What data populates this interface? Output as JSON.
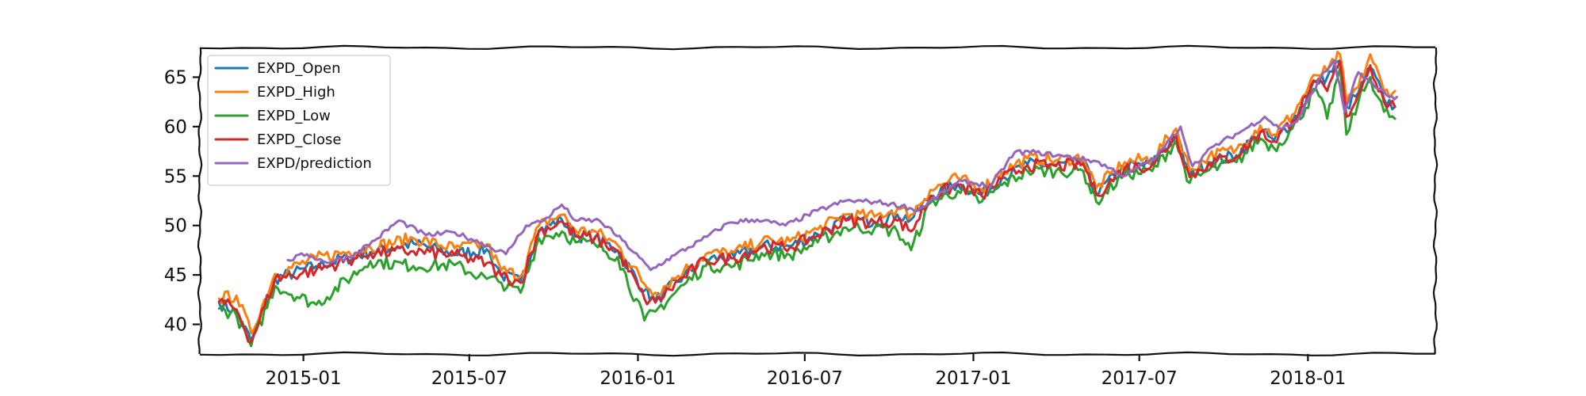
{
  "chart_data": {
    "type": "line",
    "title": "",
    "xlabel": "",
    "ylabel": "",
    "xlim": [
      "2014-09-10",
      "2018-05-20"
    ],
    "ylim": [
      37,
      68
    ],
    "x_ticks": [
      {
        "date": "2015-01-01",
        "label": "2015-01"
      },
      {
        "date": "2015-07-01",
        "label": "2015-07"
      },
      {
        "date": "2016-01-01",
        "label": "2016-01"
      },
      {
        "date": "2016-07-01",
        "label": "2016-07"
      },
      {
        "date": "2017-01-01",
        "label": "2017-01"
      },
      {
        "date": "2017-07-01",
        "label": "2017-07"
      },
      {
        "date": "2018-01-01",
        "label": "2018-01"
      }
    ],
    "y_ticks": [
      40,
      45,
      50,
      55,
      60,
      65
    ],
    "grid": false,
    "legend_position": "upper-left",
    "style": "xkcd",
    "series": [
      {
        "name": "EXPD_Open",
        "color": "#1f77b4",
        "draw_order": 1,
        "dates": [
          "2014-10-01",
          "2014-10-20",
          "2014-11-05",
          "2014-12-01",
          "2015-01-15",
          "2015-03-15",
          "2015-05-01",
          "2015-06-15",
          "2015-07-20",
          "2015-08-05",
          "2015-08-26",
          "2015-09-15",
          "2015-10-10",
          "2015-10-25",
          "2015-11-15",
          "2015-12-10",
          "2016-01-08",
          "2016-01-20",
          "2016-02-20",
          "2016-03-15",
          "2016-04-15",
          "2016-05-15",
          "2016-06-15",
          "2016-07-15",
          "2016-08-15",
          "2016-09-15",
          "2016-10-10",
          "2016-10-25",
          "2016-11-15",
          "2016-12-15",
          "2017-01-10",
          "2017-02-01",
          "2017-03-01",
          "2017-04-01",
          "2017-05-01",
          "2017-05-15",
          "2017-06-15",
          "2017-07-15",
          "2017-08-10",
          "2017-08-25",
          "2017-09-15",
          "2017-10-15",
          "2017-11-10",
          "2017-11-25",
          "2017-12-15",
          "2018-01-10",
          "2018-01-22",
          "2018-02-05",
          "2018-02-12",
          "2018-02-25",
          "2018-03-10",
          "2018-03-25",
          "2018-04-06"
        ],
        "values": [
          42.2,
          41.2,
          38.3,
          44.6,
          45.9,
          47.3,
          48.2,
          47.1,
          47.6,
          45.0,
          44.3,
          49.5,
          50.6,
          49.0,
          48.8,
          47.5,
          43.4,
          42.4,
          44.9,
          46.6,
          46.8,
          47.9,
          47.9,
          49.1,
          50.6,
          50.4,
          51.1,
          50.6,
          53.0,
          54.2,
          53.1,
          54.8,
          56.2,
          56.1,
          56.4,
          53.2,
          55.9,
          56.2,
          59.2,
          55.0,
          56.4,
          57.1,
          59.5,
          58.6,
          60.5,
          64.6,
          65.0,
          66.7,
          62.0,
          63.4,
          66.0,
          62.8,
          62.0
        ]
      },
      {
        "name": "EXPD_High",
        "color": "#ff7f0e",
        "draw_order": 2,
        "dates": [
          "2014-10-01",
          "2014-10-20",
          "2014-11-05",
          "2014-12-01",
          "2015-01-15",
          "2015-03-15",
          "2015-05-01",
          "2015-06-15",
          "2015-07-20",
          "2015-08-05",
          "2015-08-26",
          "2015-09-15",
          "2015-10-10",
          "2015-10-25",
          "2015-11-15",
          "2015-12-10",
          "2016-01-08",
          "2016-01-20",
          "2016-02-20",
          "2016-03-15",
          "2016-04-15",
          "2016-05-15",
          "2016-06-15",
          "2016-07-15",
          "2016-08-15",
          "2016-09-15",
          "2016-10-10",
          "2016-10-25",
          "2016-11-15",
          "2016-12-15",
          "2017-01-10",
          "2017-02-01",
          "2017-03-01",
          "2017-04-01",
          "2017-05-01",
          "2017-05-15",
          "2017-06-15",
          "2017-07-15",
          "2017-08-10",
          "2017-08-25",
          "2017-09-15",
          "2017-10-15",
          "2017-11-10",
          "2017-11-25",
          "2017-12-15",
          "2018-01-10",
          "2018-01-22",
          "2018-02-05",
          "2018-02-12",
          "2018-02-25",
          "2018-03-10",
          "2018-03-25",
          "2018-04-06"
        ],
        "values": [
          42.6,
          42.9,
          39.1,
          45.1,
          46.7,
          47.8,
          48.7,
          47.7,
          48.1,
          45.5,
          44.9,
          50.0,
          51.1,
          49.5,
          49.4,
          48.0,
          44.1,
          43.2,
          45.4,
          47.1,
          47.3,
          48.4,
          48.4,
          49.6,
          51.1,
          50.9,
          51.7,
          51.1,
          53.6,
          54.8,
          53.7,
          55.4,
          56.8,
          56.6,
          56.9,
          53.8,
          56.4,
          56.8,
          59.8,
          55.6,
          57.0,
          57.7,
          60.1,
          59.2,
          61.2,
          65.2,
          65.6,
          67.3,
          62.6,
          64.0,
          67.3,
          63.6,
          63.6
        ]
      },
      {
        "name": "EXPD_Low",
        "color": "#2ca02c",
        "draw_order": 3,
        "dates": [
          "2014-10-01",
          "2014-10-20",
          "2014-11-05",
          "2014-12-01",
          "2015-01-15",
          "2015-03-15",
          "2015-05-01",
          "2015-06-15",
          "2015-07-20",
          "2015-08-05",
          "2015-08-26",
          "2015-09-15",
          "2015-10-10",
          "2015-10-25",
          "2015-11-15",
          "2015-12-10",
          "2016-01-08",
          "2016-01-20",
          "2016-02-20",
          "2016-03-15",
          "2016-04-15",
          "2016-05-15",
          "2016-06-15",
          "2016-07-15",
          "2016-08-15",
          "2016-09-15",
          "2016-10-10",
          "2016-10-25",
          "2016-11-15",
          "2016-12-15",
          "2017-01-10",
          "2017-02-01",
          "2017-03-01",
          "2017-04-01",
          "2017-05-01",
          "2017-05-15",
          "2017-06-15",
          "2017-07-15",
          "2017-08-10",
          "2017-08-25",
          "2017-09-15",
          "2017-10-15",
          "2017-11-10",
          "2017-11-25",
          "2017-12-15",
          "2018-01-10",
          "2018-01-22",
          "2018-02-05",
          "2018-02-12",
          "2018-02-25",
          "2018-03-10",
          "2018-03-25",
          "2018-04-06"
        ],
        "values": [
          41.6,
          40.9,
          37.8,
          43.9,
          42.0,
          46.4,
          45.9,
          46.0,
          44.6,
          44.2,
          43.2,
          48.7,
          49.4,
          48.3,
          48.1,
          46.8,
          40.4,
          41.3,
          44.0,
          45.9,
          45.9,
          47.2,
          47.0,
          48.3,
          49.8,
          49.7,
          49.4,
          47.5,
          52.3,
          53.5,
          52.4,
          54.1,
          55.5,
          55.5,
          55.5,
          52.4,
          55.2,
          55.5,
          58.5,
          54.3,
          55.6,
          56.4,
          58.8,
          57.8,
          59.8,
          63.8,
          60.8,
          65.9,
          59.2,
          62.5,
          65.0,
          61.5,
          60.8
        ]
      },
      {
        "name": "EXPD_Close",
        "color": "#d62728",
        "draw_order": 4,
        "dates": [
          "2014-10-01",
          "2014-10-20",
          "2014-11-05",
          "2014-12-01",
          "2015-01-15",
          "2015-03-15",
          "2015-05-01",
          "2015-06-15",
          "2015-07-20",
          "2015-08-05",
          "2015-08-26",
          "2015-09-15",
          "2015-10-10",
          "2015-10-25",
          "2015-11-15",
          "2015-12-10",
          "2016-01-08",
          "2016-01-20",
          "2016-02-20",
          "2016-03-15",
          "2016-04-15",
          "2016-05-15",
          "2016-06-15",
          "2016-07-15",
          "2016-08-15",
          "2016-09-15",
          "2016-10-10",
          "2016-10-25",
          "2016-11-15",
          "2016-12-15",
          "2017-01-10",
          "2017-02-01",
          "2017-03-01",
          "2017-04-01",
          "2017-05-01",
          "2017-05-15",
          "2017-06-15",
          "2017-07-15",
          "2017-08-10",
          "2017-08-25",
          "2017-09-15",
          "2017-10-15",
          "2017-11-10",
          "2017-11-25",
          "2017-12-15",
          "2018-01-10",
          "2018-01-22",
          "2018-02-05",
          "2018-02-12",
          "2018-02-25",
          "2018-03-10",
          "2018-03-25",
          "2018-04-06"
        ],
        "values": [
          42.3,
          41.5,
          38.2,
          44.6,
          45.5,
          47.2,
          47.4,
          47.0,
          46.2,
          44.9,
          44.2,
          49.4,
          50.4,
          48.9,
          48.7,
          47.4,
          42.6,
          42.2,
          44.8,
          46.5,
          46.7,
          47.8,
          47.8,
          49.0,
          50.5,
          50.3,
          50.5,
          49.4,
          52.9,
          54.1,
          53.0,
          54.7,
          56.1,
          56.0,
          56.2,
          53.1,
          55.8,
          56.1,
          59.1,
          54.9,
          56.3,
          57.0,
          59.4,
          58.5,
          60.6,
          64.5,
          63.6,
          66.6,
          61.0,
          63.3,
          66.2,
          62.5,
          62.0
        ]
      },
      {
        "name": "EXPD/prediction",
        "color": "#9467bd",
        "draw_order": 5,
        "dates": [
          "2014-12-15",
          "2015-01-05",
          "2015-01-25",
          "2015-02-20",
          "2015-03-20",
          "2015-04-15",
          "2015-05-15",
          "2015-06-15",
          "2015-07-15",
          "2015-08-10",
          "2015-09-01",
          "2015-09-20",
          "2015-10-10",
          "2015-10-25",
          "2015-11-20",
          "2015-12-15",
          "2016-01-15",
          "2016-02-10",
          "2016-03-10",
          "2016-04-10",
          "2016-05-10",
          "2016-06-10",
          "2016-07-15",
          "2016-08-15",
          "2016-09-15",
          "2016-10-15",
          "2016-11-01",
          "2016-12-01",
          "2016-12-20",
          "2017-01-20",
          "2017-02-15",
          "2017-03-10",
          "2017-04-10",
          "2017-05-15",
          "2017-06-15",
          "2017-07-20",
          "2017-08-15",
          "2017-08-28",
          "2017-09-20",
          "2017-10-20",
          "2017-11-15",
          "2017-12-01",
          "2017-12-20",
          "2018-01-15",
          "2018-01-30",
          "2018-02-10",
          "2018-02-25",
          "2018-03-15",
          "2018-03-31",
          "2018-04-08"
        ],
        "values": [
          46.5,
          47.1,
          46.3,
          46.8,
          48.5,
          50.5,
          49.0,
          49.3,
          48.2,
          47.1,
          50.0,
          50.5,
          52.1,
          50.5,
          50.5,
          48.5,
          45.5,
          47.0,
          48.5,
          50.3,
          50.6,
          50.0,
          51.5,
          52.5,
          52.4,
          52.0,
          51.5,
          53.5,
          54.5,
          54.0,
          57.4,
          57.4,
          57.0,
          56.5,
          55.0,
          57.0,
          60.0,
          56.0,
          58.0,
          59.5,
          61.0,
          59.8,
          60.5,
          65.0,
          66.7,
          61.5,
          65.5,
          64.0,
          63.0,
          63.0
        ]
      }
    ]
  }
}
